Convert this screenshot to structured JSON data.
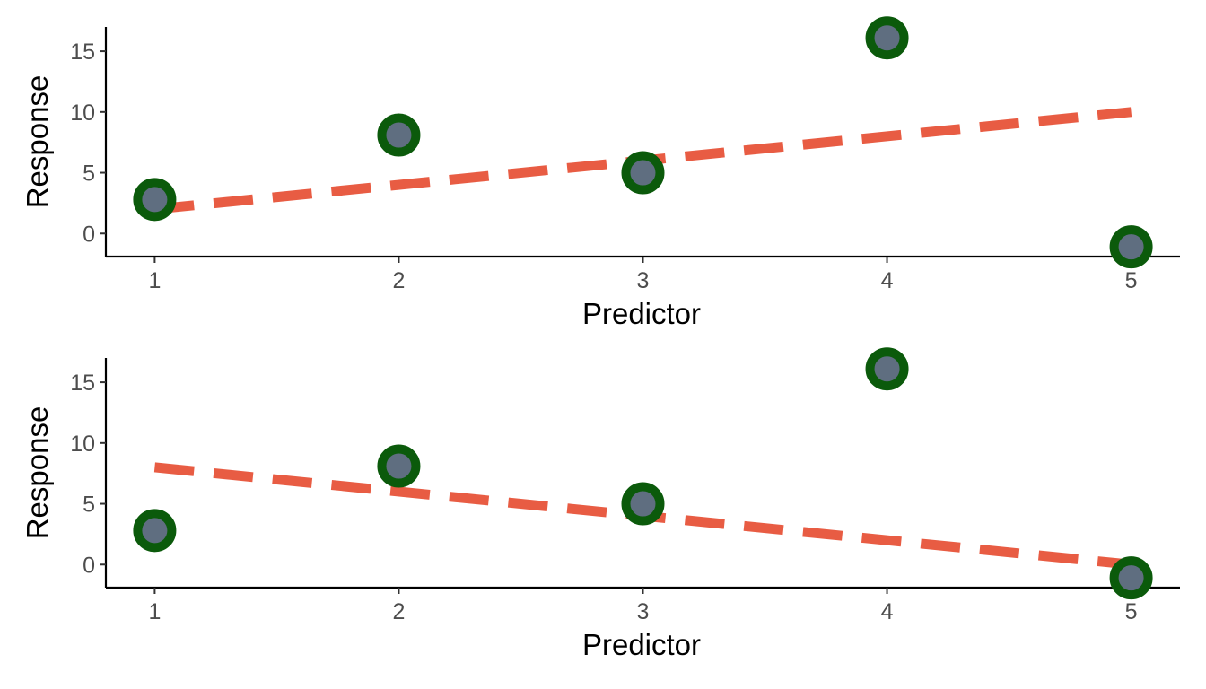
{
  "chart_data": [
    {
      "type": "scatter",
      "xlabel": "Predictor",
      "ylabel": "Response",
      "xlim": [
        0.8,
        5.2
      ],
      "ylim": [
        -1.9,
        17
      ],
      "x_ticks": [
        1,
        2,
        3,
        4,
        5
      ],
      "y_ticks": [
        0,
        5,
        10,
        15
      ],
      "grid": false,
      "series": [
        {
          "kind": "points",
          "x": [
            1,
            2,
            3,
            4,
            5
          ],
          "y": [
            2.8,
            8.1,
            5.0,
            16.1,
            -1.1
          ],
          "outline_color": "#0b5a0b",
          "fill_color": "#5f6e80"
        },
        {
          "kind": "dashed-line",
          "x": [
            1,
            5
          ],
          "y": [
            2.0,
            10.0
          ],
          "color": "#e85c43"
        }
      ]
    },
    {
      "type": "scatter",
      "xlabel": "Predictor",
      "ylabel": "Response",
      "xlim": [
        0.8,
        5.2
      ],
      "ylim": [
        -1.9,
        17
      ],
      "x_ticks": [
        1,
        2,
        3,
        4,
        5
      ],
      "y_ticks": [
        0,
        5,
        10,
        15
      ],
      "grid": false,
      "series": [
        {
          "kind": "points",
          "x": [
            1,
            2,
            3,
            4,
            5
          ],
          "y": [
            2.8,
            8.1,
            5.0,
            16.1,
            -1.1
          ],
          "outline_color": "#0b5a0b",
          "fill_color": "#5f6e80"
        },
        {
          "kind": "dashed-line",
          "x": [
            1,
            5
          ],
          "y": [
            8.0,
            0.0
          ],
          "color": "#e85c43"
        }
      ]
    }
  ]
}
